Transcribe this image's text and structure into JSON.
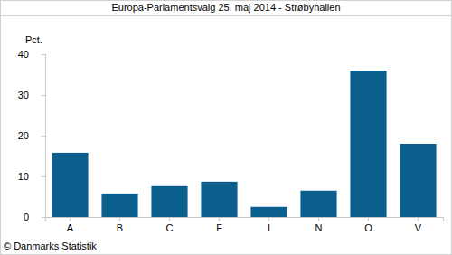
{
  "chart_data": {
    "type": "bar",
    "title": "Europa-Parlamentsvalg 25. maj 2014 - Strøbyhallen",
    "y_label": "Pct.",
    "categories": [
      "A",
      "B",
      "C",
      "F",
      "I",
      "N",
      "O",
      "V"
    ],
    "values": [
      15.8,
      5.8,
      7.6,
      8.7,
      2.5,
      6.5,
      36.0,
      18.0
    ],
    "color": "#0b5f8f",
    "ylim": [
      0,
      40
    ],
    "yticks": [
      0,
      10,
      20,
      30,
      40
    ],
    "grid": false,
    "annotations": [
      "© Danmarks Statistik"
    ]
  }
}
